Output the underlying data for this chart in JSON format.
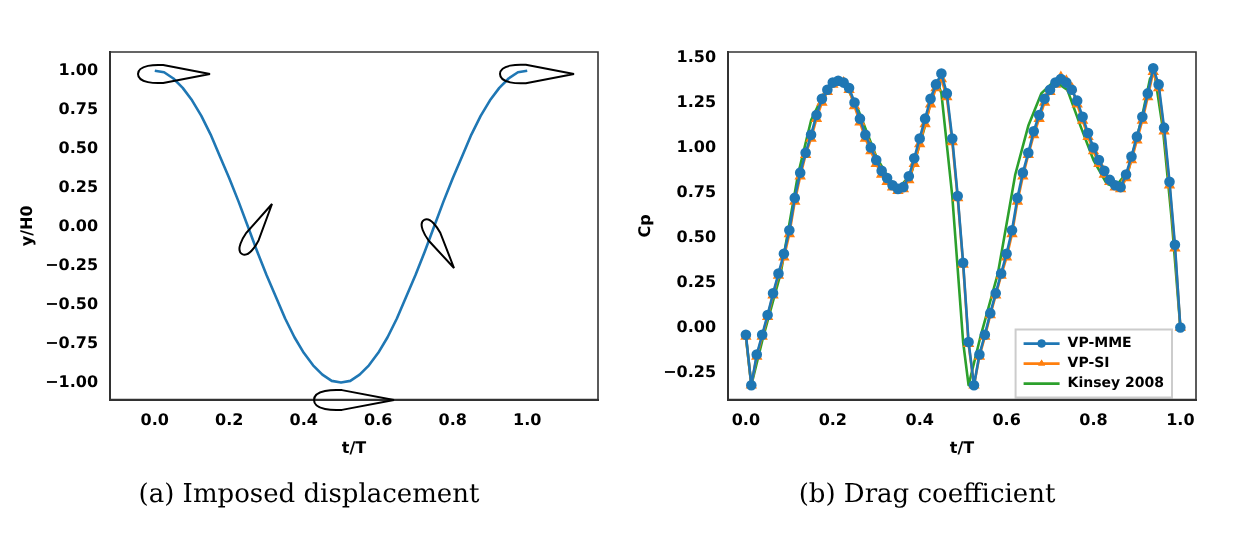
{
  "chart_data": [
    {
      "type": "line",
      "xlabel": "t/T",
      "ylabel": "y/H0",
      "annotations": [
        "(a) Imposed displacement"
      ],
      "x": [
        0,
        0.025,
        0.05,
        0.075,
        0.1,
        0.125,
        0.15,
        0.175,
        0.2,
        0.225,
        0.25,
        0.275,
        0.3,
        0.325,
        0.35,
        0.375,
        0.4,
        0.425,
        0.45,
        0.475,
        0.5,
        0.525,
        0.55,
        0.575,
        0.6,
        0.625,
        0.65,
        0.675,
        0.7,
        0.725,
        0.75,
        0.775,
        0.8,
        0.825,
        0.85,
        0.875,
        0.9,
        0.925,
        0.95,
        0.975,
        1
      ],
      "series": [
        {
          "color": "#1f77b4",
          "values": [
            1,
            0.99,
            0.95,
            0.89,
            0.81,
            0.71,
            0.59,
            0.45,
            0.31,
            0.16,
            0,
            -0.16,
            -0.31,
            -0.45,
            -0.59,
            -0.71,
            -0.81,
            -0.89,
            -0.95,
            -0.99,
            -1,
            -0.99,
            -0.95,
            -0.89,
            -0.81,
            -0.71,
            -0.59,
            -0.45,
            -0.31,
            -0.16,
            0,
            0.16,
            0.31,
            0.45,
            0.59,
            0.71,
            0.81,
            0.89,
            0.95,
            0.99,
            1
          ]
        }
      ],
      "xlim": [
        -0.12,
        1.19
      ],
      "ylim": [
        -1.11,
        1.12
      ],
      "xticks": [
        {
          "value": 0,
          "label": "0.0"
        },
        {
          "value": 0.2,
          "label": "0.2"
        },
        {
          "value": 0.4,
          "label": "0.4"
        },
        {
          "value": 0.6,
          "label": "0.6"
        },
        {
          "value": 0.8,
          "label": "0.8"
        },
        {
          "value": 1,
          "label": "1.0"
        }
      ],
      "yticks": [
        {
          "value": -1,
          "label": "−1.00"
        },
        {
          "value": -0.75,
          "label": "−0.75"
        },
        {
          "value": -0.5,
          "label": "−0.50"
        },
        {
          "value": -0.25,
          "label": "−0.25"
        },
        {
          "value": 0,
          "label": "0.00"
        },
        {
          "value": 0.25,
          "label": "0.25"
        },
        {
          "value": 0.5,
          "label": "0.50"
        },
        {
          "value": 0.75,
          "label": "0.75"
        },
        {
          "value": 1,
          "label": "1.00"
        }
      ],
      "marker": "none",
      "line_style": "solid",
      "grid": false,
      "legend": false
    },
    {
      "type": "line",
      "xlabel": "t/T",
      "ylabel": "Cp",
      "annotations": [
        "(b) Drag coefficient"
      ],
      "x": [
        0,
        0.0125,
        0.025,
        0.0375,
        0.05,
        0.0625,
        0.075,
        0.0875,
        0.1,
        0.1125,
        0.125,
        0.1375,
        0.15,
        0.1625,
        0.175,
        0.1875,
        0.2,
        0.2125,
        0.225,
        0.2375,
        0.25,
        0.2625,
        0.275,
        0.2875,
        0.3,
        0.3125,
        0.325,
        0.3375,
        0.35,
        0.3625,
        0.375,
        0.3875,
        0.4,
        0.4125,
        0.425,
        0.4375,
        0.45,
        0.4625,
        0.475,
        0.4875,
        0.5,
        0.5125,
        0.525,
        0.5375,
        0.55,
        0.5625,
        0.575,
        0.5875,
        0.6,
        0.6125,
        0.625,
        0.6375,
        0.65,
        0.6625,
        0.675,
        0.6875,
        0.7,
        0.7125,
        0.725,
        0.7375,
        0.75,
        0.7625,
        0.775,
        0.7875,
        0.8,
        0.8125,
        0.825,
        0.8375,
        0.85,
        0.8625,
        0.875,
        0.8875,
        0.9,
        0.9125,
        0.925,
        0.9375,
        0.95,
        0.9625,
        0.975,
        0.9875,
        1
      ],
      "series": [
        {
          "name": "VP-MME",
          "color": "#1f77b4",
          "marker": "circle",
          "values": [
            -0.04,
            -0.32,
            -0.15,
            -0.04,
            0.07,
            0.19,
            0.3,
            0.41,
            0.54,
            0.72,
            0.86,
            0.97,
            1.07,
            1.18,
            1.27,
            1.32,
            1.36,
            1.37,
            1.36,
            1.33,
            1.25,
            1.16,
            1.07,
            1.0,
            0.93,
            0.87,
            0.83,
            0.79,
            0.77,
            0.78,
            0.84,
            0.94,
            1.05,
            1.16,
            1.27,
            1.35,
            1.41,
            1.3,
            1.05,
            0.73,
            0.36,
            -0.08,
            -0.32,
            -0.15,
            -0.04,
            0.08,
            0.19,
            0.3,
            0.41,
            0.54,
            0.72,
            0.86,
            0.97,
            1.09,
            1.18,
            1.27,
            1.32,
            1.36,
            1.38,
            1.36,
            1.32,
            1.26,
            1.17,
            1.08,
            1.0,
            0.93,
            0.87,
            0.82,
            0.79,
            0.78,
            0.85,
            0.95,
            1.06,
            1.17,
            1.3,
            1.44,
            1.35,
            1.11,
            0.81,
            0.46,
            0.0
          ]
        },
        {
          "name": "VP-SI",
          "color": "#ff7f0e",
          "marker": "triangle",
          "values": [
            -0.05,
            -0.32,
            -0.16,
            -0.05,
            0.06,
            0.18,
            0.29,
            0.39,
            0.52,
            0.7,
            0.84,
            0.96,
            1.05,
            1.16,
            1.25,
            1.31,
            1.35,
            1.36,
            1.36,
            1.32,
            1.23,
            1.14,
            1.05,
            0.98,
            0.91,
            0.85,
            0.81,
            0.78,
            0.76,
            0.77,
            0.82,
            0.91,
            1.02,
            1.13,
            1.24,
            1.33,
            1.38,
            1.28,
            1.03,
            0.72,
            0.35,
            -0.09,
            -0.32,
            -0.16,
            -0.05,
            0.07,
            0.18,
            0.29,
            0.39,
            0.52,
            0.7,
            0.84,
            0.96,
            1.07,
            1.16,
            1.25,
            1.31,
            1.35,
            1.39,
            1.37,
            1.33,
            1.24,
            1.15,
            1.06,
            0.98,
            0.91,
            0.85,
            0.81,
            0.78,
            0.77,
            0.83,
            0.93,
            1.04,
            1.15,
            1.28,
            1.42,
            1.33,
            1.09,
            0.79,
            0.44,
            0.0
          ]
        },
        {
          "name": "Kinsey 2008",
          "color": "#2ca02c",
          "marker": "none",
          "x": [
            0,
            0.0125,
            0.04,
            0.08,
            0.12,
            0.15,
            0.18,
            0.2,
            0.23,
            0.26,
            0.3,
            0.33,
            0.35,
            0.38,
            0.41,
            0.43,
            0.44,
            0.45,
            0.475,
            0.5,
            0.5125,
            0.54,
            0.58,
            0.62,
            0.65,
            0.68,
            0.71,
            0.74,
            0.77,
            0.8,
            0.83,
            0.85,
            0.88,
            0.91,
            0.93,
            0.94,
            0.96,
            0.98,
            1.0
          ],
          "values": [
            -0.05,
            -0.32,
            -0.05,
            0.3,
            0.85,
            1.15,
            1.3,
            1.36,
            1.35,
            1.2,
            0.95,
            0.82,
            0.77,
            0.85,
            1.1,
            1.3,
            1.37,
            1.3,
            0.73,
            -0.08,
            -0.32,
            -0.05,
            0.3,
            0.85,
            1.12,
            1.3,
            1.37,
            1.32,
            1.12,
            0.93,
            0.8,
            0.78,
            0.87,
            1.15,
            1.38,
            1.42,
            1.1,
            0.6,
            0.0
          ]
        }
      ],
      "xlim": [
        -0.041,
        1.036
      ],
      "ylim": [
        -0.4,
        1.53
      ],
      "xticks": [
        {
          "value": 0,
          "label": "0.0"
        },
        {
          "value": 0.2,
          "label": "0.2"
        },
        {
          "value": 0.4,
          "label": "0.4"
        },
        {
          "value": 0.6,
          "label": "0.6"
        },
        {
          "value": 0.8,
          "label": "0.8"
        },
        {
          "value": 1,
          "label": "1.0"
        }
      ],
      "yticks": [
        {
          "value": -0.25,
          "label": "−0.25"
        },
        {
          "value": 0,
          "label": "0.00"
        },
        {
          "value": 0.25,
          "label": "0.25"
        },
        {
          "value": 0.5,
          "label": "0.50"
        },
        {
          "value": 0.75,
          "label": "0.75"
        },
        {
          "value": 1,
          "label": "1.00"
        },
        {
          "value": 1.25,
          "label": "1.25"
        },
        {
          "value": 1.5,
          "label": "1.50"
        }
      ],
      "line_style": "solid",
      "grid": false,
      "legend": "bottom right"
    }
  ]
}
